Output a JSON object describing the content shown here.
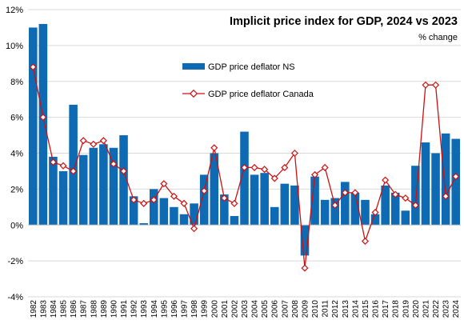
{
  "chart_data": {
    "type": "bar",
    "title": "Implicit price index for GDP, 2024 vs 2023",
    "subtitle": "% change",
    "xlabel": "",
    "ylabel": "",
    "ylim": [
      -4,
      12
    ],
    "y_ticks": [
      {
        "value": -4,
        "label": "-4%"
      },
      {
        "value": -2,
        "label": "-2%"
      },
      {
        "value": 0,
        "label": "0%"
      },
      {
        "value": 2,
        "label": "2%"
      },
      {
        "value": 4,
        "label": "4%"
      },
      {
        "value": 6,
        "label": "6%"
      },
      {
        "value": 8,
        "label": "8%"
      },
      {
        "value": 10,
        "label": "10%"
      },
      {
        "value": 12,
        "label": "12%"
      }
    ],
    "grid": true,
    "legend_position": "upper-center",
    "categories": [
      "1982",
      "1983",
      "1984",
      "1985",
      "1986",
      "1987",
      "1988",
      "1989",
      "1990",
      "1991",
      "1992",
      "1993",
      "1994",
      "1995",
      "1996",
      "1997",
      "1998",
      "1999",
      "2000",
      "2001",
      "2002",
      "2003",
      "2004",
      "2005",
      "2006",
      "2007",
      "2008",
      "2009",
      "2010",
      "2011",
      "2012",
      "2013",
      "2014",
      "2015",
      "2016",
      "2017",
      "2018",
      "2019",
      "2020",
      "2021",
      "2022",
      "2023",
      "2024"
    ],
    "series": [
      {
        "name": "GDP price deflator NS",
        "kind": "bar",
        "color": "#0f6ab4",
        "values": [
          11.0,
          11.2,
          3.8,
          3.0,
          6.7,
          3.9,
          4.3,
          4.5,
          4.3,
          5.0,
          1.6,
          0.1,
          2.0,
          1.5,
          1.0,
          0.6,
          1.2,
          2.8,
          4.0,
          1.7,
          0.5,
          5.2,
          2.8,
          2.9,
          1.0,
          2.3,
          2.2,
          -1.7,
          2.7,
          1.4,
          1.5,
          2.4,
          1.8,
          1.4,
          0.6,
          2.2,
          1.8,
          0.8,
          3.3,
          4.6,
          4.0,
          5.1,
          4.8
        ]
      },
      {
        "name": "GDP price deflator Canada",
        "kind": "line",
        "color": "#cc1111",
        "values": [
          8.8,
          6.0,
          3.5,
          3.3,
          3.0,
          4.7,
          4.5,
          4.7,
          3.4,
          3.0,
          1.4,
          1.2,
          1.4,
          2.3,
          1.6,
          1.2,
          -0.2,
          1.9,
          4.3,
          1.5,
          1.2,
          3.2,
          3.2,
          3.1,
          2.6,
          3.2,
          4.0,
          -2.4,
          2.8,
          3.2,
          1.1,
          1.8,
          1.8,
          -0.9,
          0.7,
          2.5,
          1.7,
          1.5,
          1.1,
          7.8,
          7.8,
          1.6,
          2.7
        ]
      }
    ]
  }
}
